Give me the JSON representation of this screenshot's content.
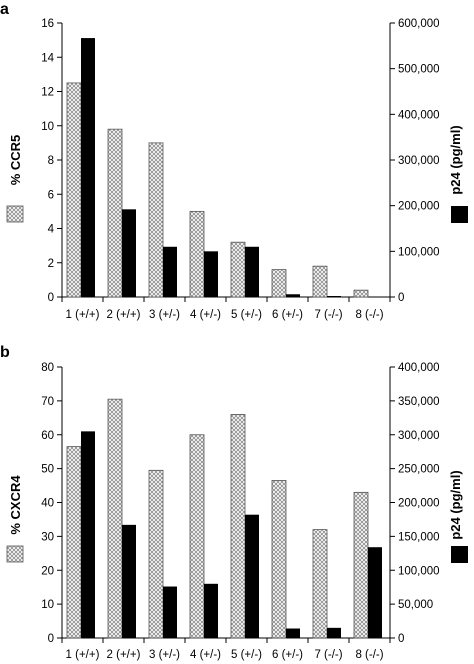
{
  "chart_data": [
    {
      "type": "bar",
      "panel_label": "a",
      "categories": [
        "1 (+/+)",
        "2 (+/+)",
        "3 (+/-)",
        "4 (+/-)",
        "5 (+/-)",
        "6 (+/-)",
        "7 (-/-)",
        "8 (-/-)"
      ],
      "series": [
        {
          "name": "% CCR5",
          "axis": "left",
          "pattern": "crosshatch",
          "values": [
            12.5,
            9.8,
            9.0,
            5.0,
            3.2,
            1.6,
            1.8,
            0.4
          ]
        },
        {
          "name": "p24 (pg/ml)",
          "axis": "right",
          "pattern": "solid-black",
          "values": [
            567000,
            192000,
            110000,
            100000,
            110000,
            6000,
            2000,
            0
          ]
        }
      ],
      "ylabel": "% CCR5",
      "ylabel_right": "p24 (pg/ml)",
      "ylim": [
        0,
        16
      ],
      "ylim_right": [
        0,
        600000
      ],
      "yticks": [
        "0",
        "2",
        "4",
        "6",
        "8",
        "10",
        "12",
        "14",
        "16"
      ],
      "yticks_right": [
        "0",
        "100,000",
        "200,000",
        "300,000",
        "400,000",
        "500,000",
        "600,000"
      ],
      "grid": false,
      "legend": "swatches beside axis titles"
    },
    {
      "type": "bar",
      "panel_label": "b",
      "categories": [
        "1 (+/+)",
        "2 (+/+)",
        "3 (+/-)",
        "4 (+/-)",
        "5 (+/-)",
        "6 (+/-)",
        "7 (-/-)",
        "8 (-/-)"
      ],
      "series": [
        {
          "name": "% CXCR4",
          "axis": "left",
          "pattern": "crosshatch",
          "values": [
            56.5,
            70.5,
            49.5,
            60.0,
            66.0,
            46.5,
            32.0,
            43.0
          ]
        },
        {
          "name": "p24 (pg/ml)",
          "axis": "right",
          "pattern": "solid-black",
          "values": [
            305000,
            167000,
            76000,
            80000,
            182000,
            14000,
            15000,
            134000
          ]
        }
      ],
      "ylabel": "% CXCR4",
      "ylabel_right": "p24 (pg/ml)",
      "ylim": [
        0,
        80
      ],
      "ylim_right": [
        0,
        400000
      ],
      "yticks": [
        "0",
        "10",
        "20",
        "30",
        "40",
        "50",
        "60",
        "70",
        "80"
      ],
      "yticks_right": [
        "0",
        "50,000",
        "100,000",
        "150,000",
        "200,000",
        "250,000",
        "300,000",
        "350,000",
        "400,000"
      ],
      "grid": false,
      "legend": "swatches beside axis titles"
    }
  ]
}
